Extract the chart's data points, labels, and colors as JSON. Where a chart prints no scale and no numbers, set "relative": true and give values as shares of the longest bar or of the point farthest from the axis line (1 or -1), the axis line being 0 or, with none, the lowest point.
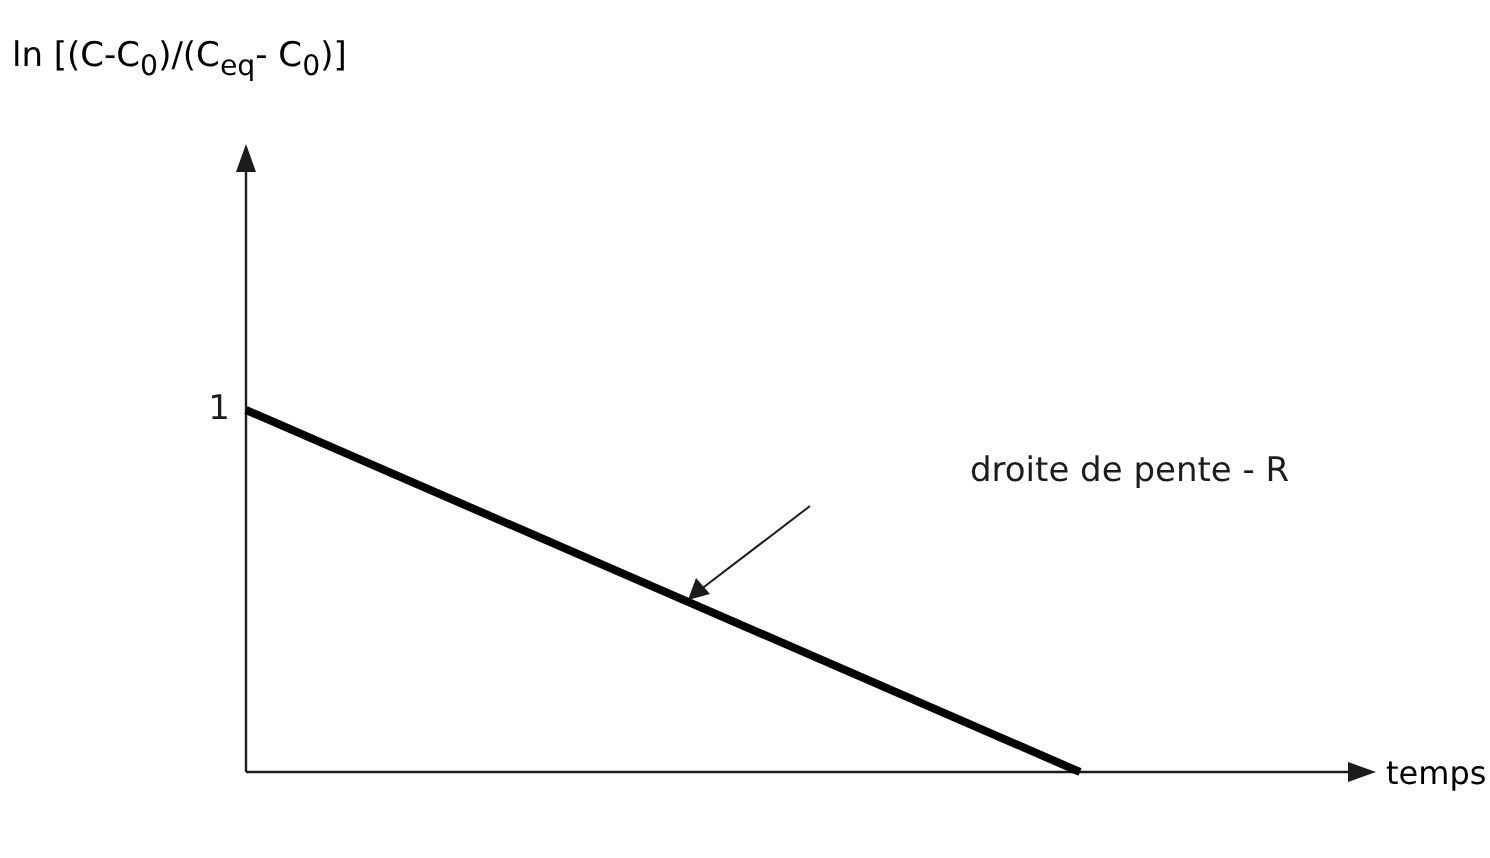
{
  "chart_data": {
    "type": "line",
    "relative": true,
    "categories": [
      null,
      null
    ],
    "series": [
      {
        "color": "#000000",
        "values": [
          1,
          0
        ]
      }
    ],
    "xlabel": "temps",
    "annotations": [
      "ln [(C-C$_{0}$)/(C$_{eq}$- C$_{0}$)]",
      "1",
      "droite de pente - R"
    ],
    "legend": false,
    "marker": "none",
    "line_style": "solid"
  }
}
